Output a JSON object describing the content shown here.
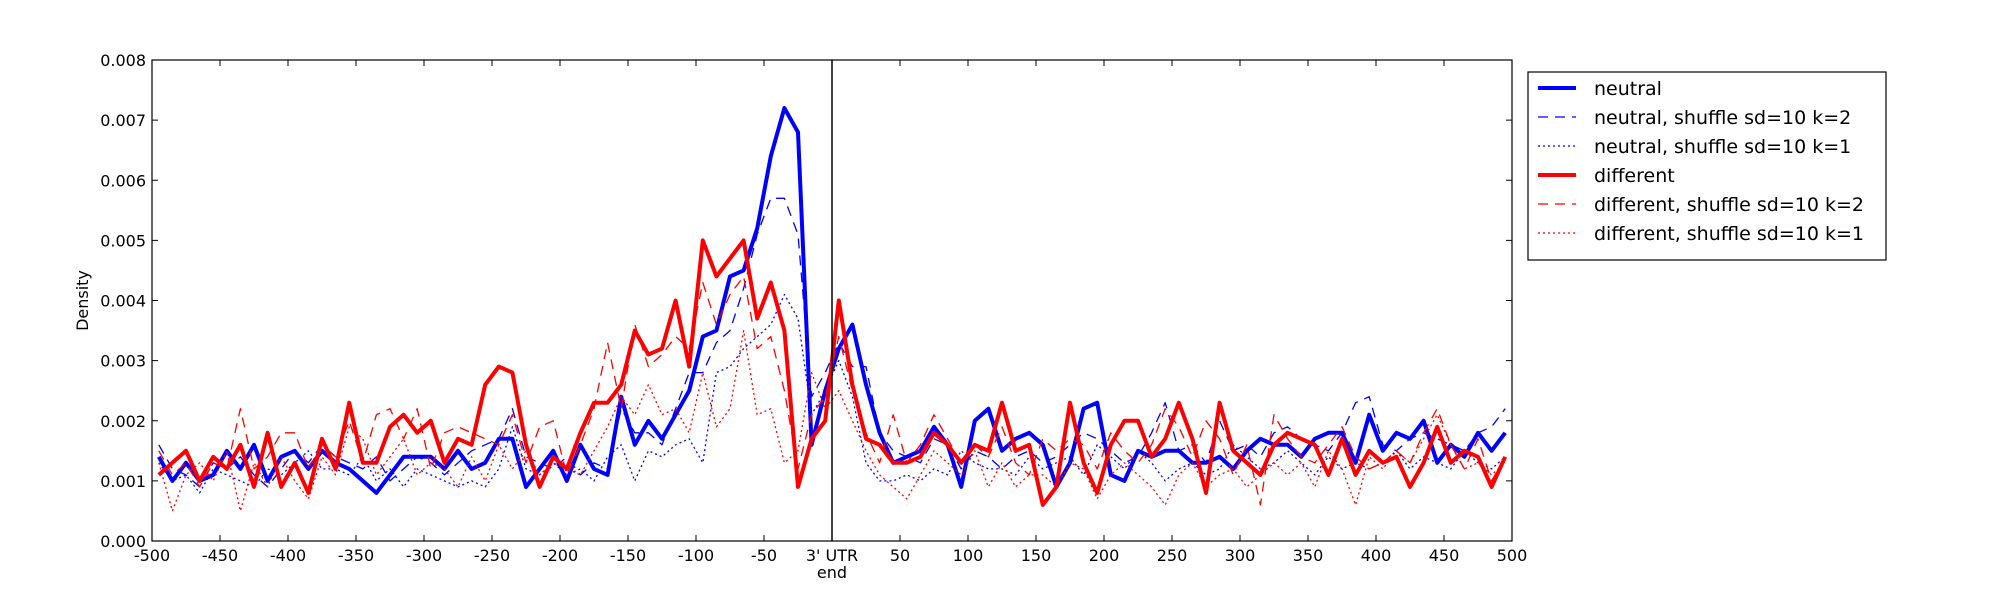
{
  "chart_data": {
    "type": "line",
    "ylabel": "Density",
    "xlim": [
      -500,
      500
    ],
    "ylim": [
      0,
      0.008
    ],
    "grid": false,
    "legend_placement": "outside-right-top",
    "x_ticks": [
      {
        "value": -500,
        "label": "-500"
      },
      {
        "value": -450,
        "label": "-450"
      },
      {
        "value": -400,
        "label": "-400"
      },
      {
        "value": -350,
        "label": "-350"
      },
      {
        "value": -300,
        "label": "-300"
      },
      {
        "value": -250,
        "label": "-250"
      },
      {
        "value": -200,
        "label": "-200"
      },
      {
        "value": -150,
        "label": "-150"
      },
      {
        "value": -100,
        "label": "-100"
      },
      {
        "value": -50,
        "label": "-50"
      },
      {
        "value": 0,
        "label": "3' UTR",
        "sublabel": "end"
      },
      {
        "value": 50,
        "label": "50"
      },
      {
        "value": 100,
        "label": "100"
      },
      {
        "value": 150,
        "label": "150"
      },
      {
        "value": 200,
        "label": "200"
      },
      {
        "value": 250,
        "label": "250"
      },
      {
        "value": 300,
        "label": "300"
      },
      {
        "value": 350,
        "label": "350"
      },
      {
        "value": 400,
        "label": "400"
      },
      {
        "value": 450,
        "label": "450"
      },
      {
        "value": 500,
        "label": "500"
      }
    ],
    "y_ticks": [
      {
        "value": 0,
        "label": "0.000"
      },
      {
        "value": 0.001,
        "label": "0.001"
      },
      {
        "value": 0.002,
        "label": "0.002"
      },
      {
        "value": 0.003,
        "label": "0.003"
      },
      {
        "value": 0.004,
        "label": "0.004"
      },
      {
        "value": 0.005,
        "label": "0.005"
      },
      {
        "value": 0.006,
        "label": "0.006"
      },
      {
        "value": 0.007,
        "label": "0.007"
      },
      {
        "value": 0.008,
        "label": "0.008"
      }
    ],
    "vertical_line_x": 0,
    "x": [
      -495,
      -485,
      -475,
      -465,
      -455,
      -445,
      -435,
      -425,
      -415,
      -405,
      -395,
      -385,
      -375,
      -365,
      -355,
      -345,
      -335,
      -325,
      -315,
      -305,
      -295,
      -285,
      -275,
      -265,
      -255,
      -245,
      -235,
      -225,
      -215,
      -205,
      -195,
      -185,
      -175,
      -165,
      -155,
      -145,
      -135,
      -125,
      -115,
      -105,
      -95,
      -85,
      -75,
      -65,
      -55,
      -45,
      -35,
      -25,
      -15,
      -5,
      5,
      15,
      25,
      35,
      45,
      55,
      65,
      75,
      85,
      95,
      105,
      115,
      125,
      135,
      145,
      155,
      165,
      175,
      185,
      195,
      205,
      215,
      225,
      235,
      245,
      255,
      265,
      275,
      285,
      295,
      305,
      315,
      325,
      335,
      345,
      355,
      365,
      375,
      385,
      395,
      405,
      415,
      425,
      435,
      445,
      455,
      465,
      475,
      485,
      495
    ],
    "series": [
      {
        "name": "neutral",
        "color": "#0000ff",
        "style": "solid",
        "width": 4,
        "values": [
          0.0014,
          0.001,
          0.0013,
          0.001,
          0.0011,
          0.0015,
          0.0012,
          0.0016,
          0.001,
          0.0014,
          0.0015,
          0.0012,
          0.0015,
          0.0013,
          0.0012,
          0.001,
          0.0008,
          0.0011,
          0.0014,
          0.0014,
          0.0014,
          0.0012,
          0.0015,
          0.0012,
          0.0013,
          0.0017,
          0.0017,
          0.0009,
          0.0012,
          0.0015,
          0.001,
          0.0016,
          0.0012,
          0.0011,
          0.0024,
          0.0016,
          0.002,
          0.0017,
          0.0021,
          0.0025,
          0.0034,
          0.0035,
          0.0044,
          0.0045,
          0.0052,
          0.0064,
          0.0072,
          0.0068,
          0.0016,
          0.0025,
          0.0032,
          0.0036,
          0.0026,
          0.0018,
          0.0013,
          0.0014,
          0.0015,
          0.0019,
          0.0016,
          0.0009,
          0.002,
          0.0022,
          0.0015,
          0.0017,
          0.0018,
          0.0016,
          0.0009,
          0.0013,
          0.0022,
          0.0023,
          0.0011,
          0.001,
          0.0015,
          0.0014,
          0.0015,
          0.0015,
          0.0013,
          0.0013,
          0.0014,
          0.0012,
          0.0015,
          0.0017,
          0.0016,
          0.0016,
          0.0014,
          0.0017,
          0.0018,
          0.0018,
          0.0013,
          0.0021,
          0.0015,
          0.0018,
          0.0017,
          0.002,
          0.0013,
          0.0016,
          0.0014,
          0.0018,
          0.0015,
          0.0018
        ]
      },
      {
        "name": "neutral, shuffle sd=10 k=2",
        "color": "#0000ff",
        "style": "dashed",
        "width": 1.3,
        "values": [
          0.0016,
          0.0012,
          0.0011,
          0.0009,
          0.0013,
          0.0012,
          0.0014,
          0.0011,
          0.0009,
          0.0012,
          0.0015,
          0.0013,
          0.0016,
          0.0014,
          0.0013,
          0.0012,
          0.0014,
          0.001,
          0.0012,
          0.0014,
          0.0013,
          0.0011,
          0.0013,
          0.0015,
          0.0016,
          0.0017,
          0.0022,
          0.0014,
          0.0013,
          0.0012,
          0.0014,
          0.0011,
          0.0013,
          0.0012,
          0.0022,
          0.0018,
          0.0018,
          0.0016,
          0.0022,
          0.0028,
          0.0028,
          0.0033,
          0.0035,
          0.0042,
          0.0051,
          0.0057,
          0.0057,
          0.0051,
          0.0024,
          0.0028,
          0.0033,
          0.0029,
          0.0029,
          0.0018,
          0.0015,
          0.0014,
          0.0013,
          0.0017,
          0.0016,
          0.0012,
          0.0015,
          0.0014,
          0.0012,
          0.0014,
          0.0015,
          0.0013,
          0.0014,
          0.0016,
          0.0018,
          0.0017,
          0.0015,
          0.0013,
          0.0014,
          0.0018,
          0.0023,
          0.0015,
          0.0016,
          0.0013,
          0.002,
          0.0015,
          0.0016,
          0.0014,
          0.0018,
          0.0019,
          0.0017,
          0.0016,
          0.0015,
          0.0018,
          0.0023,
          0.0024,
          0.0016,
          0.0015,
          0.0017,
          0.0018,
          0.0017,
          0.0016,
          0.0015,
          0.0018,
          0.0019,
          0.0022
        ]
      },
      {
        "name": "neutral, shuffle sd=10 k=1",
        "color": "#0000ff",
        "style": "dotted",
        "width": 1.3,
        "values": [
          0.0013,
          0.001,
          0.0011,
          0.0008,
          0.0012,
          0.0011,
          0.001,
          0.0009,
          0.0012,
          0.0011,
          0.0013,
          0.0015,
          0.0012,
          0.0012,
          0.0011,
          0.0014,
          0.001,
          0.0012,
          0.0009,
          0.0012,
          0.0011,
          0.001,
          0.0009,
          0.001,
          0.0009,
          0.0012,
          0.0019,
          0.0012,
          0.0011,
          0.0013,
          0.0011,
          0.0012,
          0.001,
          0.0014,
          0.0016,
          0.001,
          0.0015,
          0.0014,
          0.0016,
          0.0017,
          0.0013,
          0.0028,
          0.0029,
          0.0032,
          0.0034,
          0.0036,
          0.0041,
          0.0037,
          0.0021,
          0.0025,
          0.003,
          0.0024,
          0.0013,
          0.001,
          0.001,
          0.0011,
          0.001,
          0.0012,
          0.0011,
          0.0015,
          0.0013,
          0.0012,
          0.0012,
          0.0011,
          0.0014,
          0.0012,
          0.0013,
          0.0014,
          0.0011,
          0.0016,
          0.0014,
          0.0012,
          0.0015,
          0.0013,
          0.001,
          0.0012,
          0.0013,
          0.0011,
          0.0012,
          0.0016,
          0.0014,
          0.0012,
          0.0013,
          0.0015,
          0.0013,
          0.0011,
          0.0014,
          0.0012,
          0.0013,
          0.0012,
          0.0013,
          0.0015,
          0.0012,
          0.0014,
          0.0013,
          0.0012,
          0.0015,
          0.0013,
          0.0012,
          0.0014
        ]
      },
      {
        "name": "different",
        "color": "#ff0000",
        "style": "solid",
        "width": 4,
        "values": [
          0.0011,
          0.0013,
          0.0015,
          0.001,
          0.0014,
          0.0012,
          0.0016,
          0.0009,
          0.0018,
          0.0009,
          0.0013,
          0.0008,
          0.0017,
          0.0012,
          0.0023,
          0.0013,
          0.0013,
          0.0019,
          0.0021,
          0.0018,
          0.002,
          0.0013,
          0.0017,
          0.0016,
          0.0026,
          0.0029,
          0.0028,
          0.0016,
          0.0009,
          0.0014,
          0.0012,
          0.0018,
          0.0023,
          0.0023,
          0.0026,
          0.0035,
          0.0031,
          0.0032,
          0.004,
          0.0029,
          0.005,
          0.0044,
          0.0047,
          0.005,
          0.0037,
          0.0043,
          0.0035,
          0.0009,
          0.0017,
          0.002,
          0.004,
          0.0026,
          0.0017,
          0.0016,
          0.0013,
          0.0013,
          0.0014,
          0.0018,
          0.0016,
          0.0013,
          0.0016,
          0.0015,
          0.0023,
          0.0015,
          0.0016,
          0.0006,
          0.0009,
          0.0023,
          0.0013,
          0.0008,
          0.0016,
          0.002,
          0.002,
          0.0014,
          0.0017,
          0.0023,
          0.0017,
          0.0008,
          0.0023,
          0.0015,
          0.0013,
          0.0011,
          0.0016,
          0.0018,
          0.0017,
          0.0016,
          0.0011,
          0.0017,
          0.0011,
          0.0015,
          0.0013,
          0.0014,
          0.0009,
          0.0013,
          0.0019,
          0.0013,
          0.0015,
          0.0014,
          0.0009,
          0.0014
        ]
      },
      {
        "name": "different, shuffle sd=10 k=2",
        "color": "#ff0000",
        "style": "dashed",
        "width": 1.3,
        "values": [
          0.0015,
          0.0011,
          0.0013,
          0.0009,
          0.0013,
          0.0012,
          0.0022,
          0.0012,
          0.0014,
          0.0018,
          0.0018,
          0.0012,
          0.0016,
          0.0014,
          0.002,
          0.0013,
          0.0021,
          0.0022,
          0.0017,
          0.0022,
          0.0012,
          0.0018,
          0.0019,
          0.0018,
          0.0017,
          0.0016,
          0.0021,
          0.0013,
          0.0019,
          0.002,
          0.0011,
          0.0016,
          0.0022,
          0.0033,
          0.0022,
          0.0036,
          0.0029,
          0.0031,
          0.0034,
          0.0032,
          0.0043,
          0.0036,
          0.0041,
          0.0044,
          0.0032,
          0.0034,
          0.0025,
          0.0012,
          0.0021,
          0.0024,
          0.0034,
          0.0025,
          0.0018,
          0.0013,
          0.0021,
          0.0013,
          0.0016,
          0.0021,
          0.0017,
          0.0013,
          0.0016,
          0.0014,
          0.0019,
          0.0013,
          0.0011,
          0.0017,
          0.0015,
          0.0017,
          0.0016,
          0.0012,
          0.0018,
          0.0015,
          0.0013,
          0.0016,
          0.0022,
          0.0019,
          0.0014,
          0.002,
          0.0017,
          0.0011,
          0.0016,
          0.0006,
          0.0021,
          0.0017,
          0.0014,
          0.0013,
          0.0016,
          0.0019,
          0.0014,
          0.0012,
          0.0013,
          0.0015,
          0.0013,
          0.0018,
          0.0022,
          0.0016,
          0.0012,
          0.0017,
          0.001,
          0.0014
        ]
      },
      {
        "name": "different, shuffle sd=10 k=1",
        "color": "#ff0000",
        "style": "dotted",
        "width": 1.3,
        "values": [
          0.0013,
          0.0005,
          0.0011,
          0.0013,
          0.001,
          0.0015,
          0.0005,
          0.0013,
          0.0009,
          0.0014,
          0.001,
          0.0007,
          0.0014,
          0.0011,
          0.0019,
          0.0017,
          0.0011,
          0.0014,
          0.0017,
          0.0011,
          0.0013,
          0.0012,
          0.0009,
          0.0014,
          0.001,
          0.0016,
          0.0012,
          0.0015,
          0.0011,
          0.0013,
          0.0012,
          0.0011,
          0.0015,
          0.0019,
          0.0024,
          0.0021,
          0.0026,
          0.0021,
          0.0022,
          0.0018,
          0.0028,
          0.0019,
          0.0022,
          0.0035,
          0.0021,
          0.0022,
          0.0013,
          0.0015,
          0.0028,
          0.0022,
          0.0025,
          0.002,
          0.0015,
          0.0011,
          0.0009,
          0.0007,
          0.0011,
          0.0015,
          0.0013,
          0.0011,
          0.0015,
          0.0009,
          0.0013,
          0.0009,
          0.0011,
          0.0011,
          0.0009,
          0.0013,
          0.0012,
          0.0007,
          0.0011,
          0.0013,
          0.0011,
          0.0009,
          0.0006,
          0.0011,
          0.0013,
          0.0009,
          0.0011,
          0.0012,
          0.0009,
          0.0011,
          0.0013,
          0.0011,
          0.0013,
          0.0009,
          0.0015,
          0.0012,
          0.0006,
          0.0014,
          0.0012,
          0.0015,
          0.0013,
          0.0017,
          0.0021,
          0.0016,
          0.0012,
          0.0013,
          0.0011,
          0.0013
        ]
      }
    ]
  }
}
